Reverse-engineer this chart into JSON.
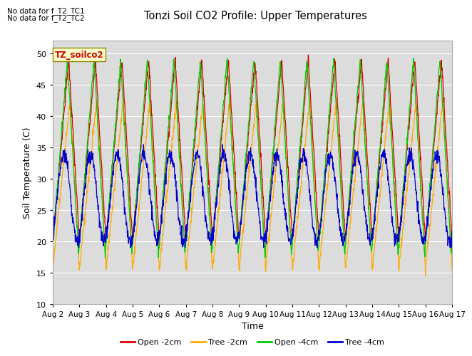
{
  "title": "Tonzi Soil CO2 Profile: Upper Temperatures",
  "xlabel": "Time",
  "ylabel": "Soil Temperature (C)",
  "note_line1": "No data for f_T2_TC1",
  "note_line2": "No data for f_T2_TC2",
  "box_label": "TZ_soilco2",
  "ylim": [
    10,
    52
  ],
  "yticks": [
    10,
    15,
    20,
    25,
    30,
    35,
    40,
    45,
    50
  ],
  "xtick_labels": [
    "Aug 2",
    "Aug 3",
    "Aug 4",
    "Aug 5",
    "Aug 6",
    "Aug 7",
    "Aug 8",
    "Aug 9",
    "Aug 10",
    "Aug 11",
    "Aug 12",
    "Aug 13",
    "Aug 14",
    "Aug 15",
    "Aug 16",
    "Aug 17"
  ],
  "legend": [
    {
      "label": "Open -2cm",
      "color": "#dd0000"
    },
    {
      "label": "Tree -2cm",
      "color": "#ffaa00"
    },
    {
      "label": "Open -4cm",
      "color": "#00cc00"
    },
    {
      "label": "Tree -4cm",
      "color": "#0000cc"
    }
  ],
  "background_color": "#dcdcdc",
  "fig_background": "#ffffff",
  "n_days": 15,
  "points_per_day": 96
}
